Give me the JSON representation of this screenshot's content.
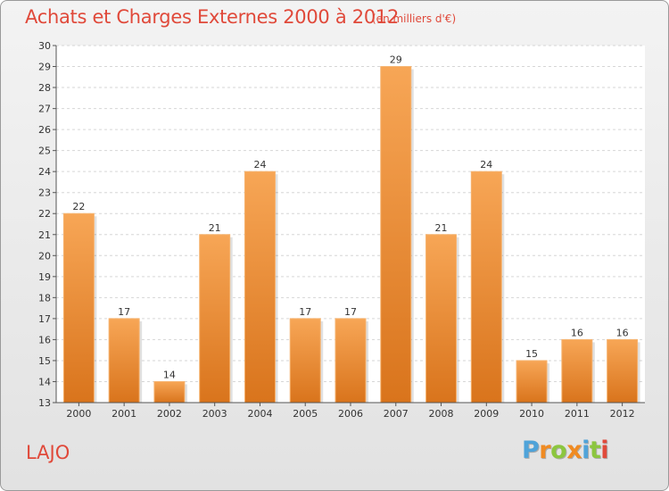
{
  "chart_data": {
    "type": "bar",
    "title": "Achats et Charges Externes 2000 à 2012",
    "subtitle": "(en milliers d'€)",
    "categories": [
      "2000",
      "2001",
      "2002",
      "2003",
      "2004",
      "2005",
      "2006",
      "2007",
      "2008",
      "2009",
      "2010",
      "2011",
      "2012"
    ],
    "values": [
      22,
      17,
      14,
      21,
      24,
      17,
      17,
      29,
      21,
      24,
      15,
      16,
      16
    ],
    "ylim": [
      13,
      30
    ],
    "yticks": [
      "13",
      "14",
      "15",
      "16",
      "17",
      "18",
      "19",
      "20",
      "21",
      "22",
      "23",
      "24",
      "25",
      "26",
      "27",
      "28",
      "29",
      "30"
    ],
    "grid": true,
    "legend": "none",
    "bar_color": "#f0902e"
  },
  "footer": {
    "commune": "LAJO",
    "logo_letters": [
      "P",
      "r",
      "o",
      "x",
      "i",
      "t",
      "i"
    ],
    "logo_colors": [
      "#4fa3d9",
      "#f08b22",
      "#8cc63f",
      "#f08b22",
      "#4fa3d9",
      "#8cc63f",
      "#e0493a"
    ]
  }
}
